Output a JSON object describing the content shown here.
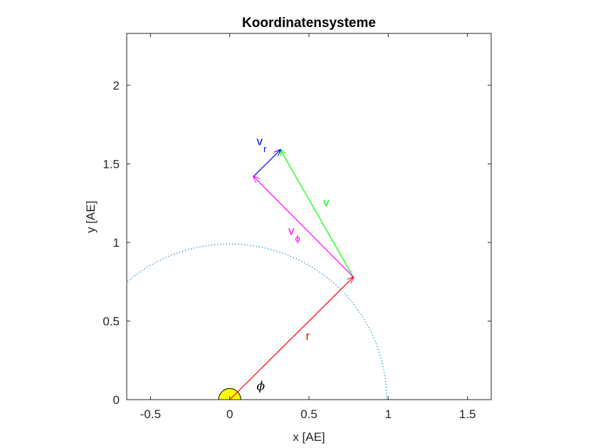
{
  "chart_data": {
    "type": "vector-diagram",
    "title": "Koordinatensysteme",
    "xlabel": "x [AE]",
    "ylabel": "y [AE]",
    "xlim": [
      -0.65,
      1.65
    ],
    "ylim": [
      0,
      2.33
    ],
    "x_ticks": [
      -0.5,
      0,
      0.5,
      1,
      1.5
    ],
    "x_tick_labels": [
      "-0.5",
      "0",
      "0.5",
      "1",
      "1.5"
    ],
    "y_ticks": [
      0,
      0.5,
      1,
      1.5,
      2
    ],
    "y_tick_labels": [
      "0",
      "0.5",
      "1",
      "1.5",
      "2"
    ],
    "grid": false,
    "orbit": {
      "type": "circle",
      "center": [
        0,
        0
      ],
      "radius": 0.99,
      "style": "dotted",
      "color": "#0072BD"
    },
    "sun": {
      "center": [
        0,
        0
      ],
      "radius": 0.07,
      "color": "#FFFF00"
    },
    "vectors": [
      {
        "name": "r",
        "label": "r",
        "subscript": "",
        "from": [
          0,
          0
        ],
        "to": [
          0.78,
          0.78
        ],
        "color": "#FF0000",
        "label_at": [
          0.48,
          0.38
        ]
      },
      {
        "name": "v",
        "label": "v",
        "subscript": "",
        "from": [
          0.78,
          0.78
        ],
        "to": [
          0.32,
          1.59
        ],
        "color": "#00FF00",
        "label_at": [
          0.59,
          1.23
        ]
      },
      {
        "name": "v-phi",
        "label": "v",
        "subscript": "ϕ",
        "from": [
          0.78,
          0.78
        ],
        "to": [
          0.15,
          1.42
        ],
        "color": "#FF00FF",
        "label_at": [
          0.37,
          1.05
        ]
      },
      {
        "name": "v-r",
        "label": "v",
        "subscript": "r",
        "from": [
          0.15,
          1.42
        ],
        "to": [
          0.32,
          1.59
        ],
        "color": "#0000FF",
        "label_at": [
          0.17,
          1.62
        ]
      }
    ],
    "angle_label": {
      "text": "ϕ",
      "at": [
        0.17,
        0.06
      ]
    }
  }
}
